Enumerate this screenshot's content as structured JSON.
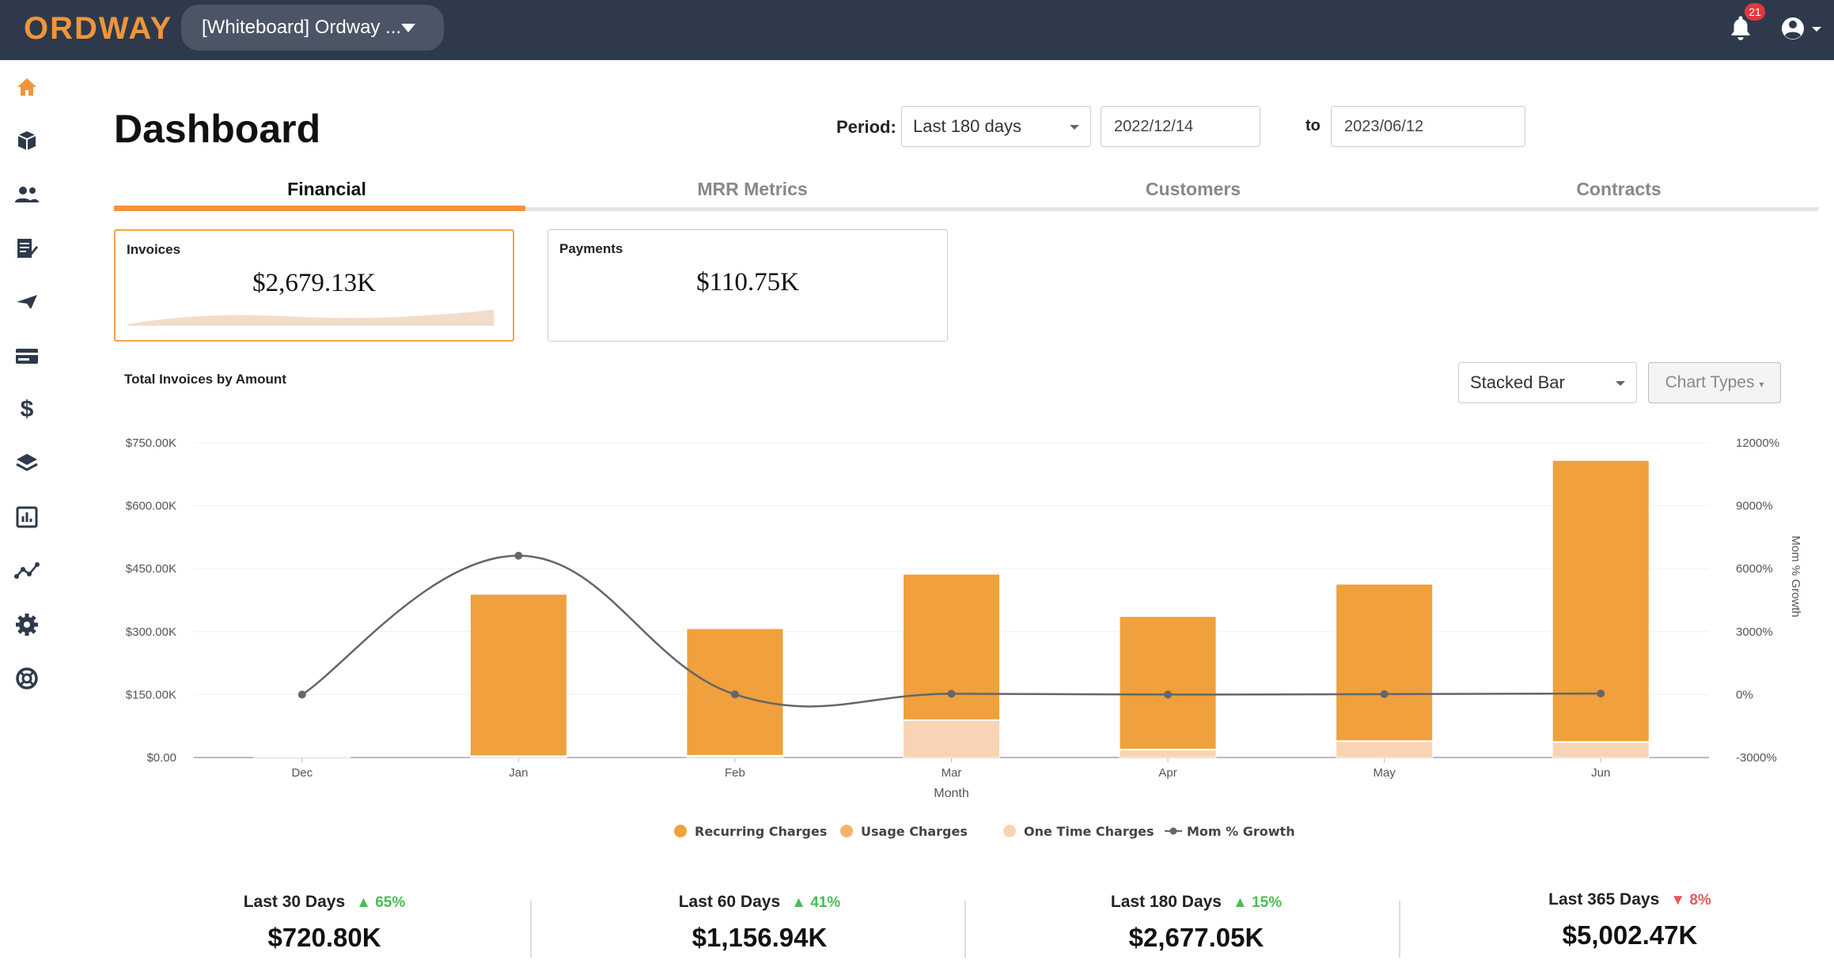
{
  "app": {
    "logo": "ORDWAY",
    "org_selector": "[Whiteboard] Ordway ...",
    "notifications_count": "21"
  },
  "sidebar": {
    "items": [
      "home-icon",
      "box-icon",
      "users-icon",
      "invoice-edit-icon",
      "send-icon",
      "card-icon",
      "dollar-icon",
      "layers-icon",
      "report-icon",
      "analytics-icon",
      "settings-icon",
      "support-icon"
    ]
  },
  "page": {
    "title": "Dashboard",
    "period_label": "Period:",
    "period_value": "Last 180 days",
    "date_from": "2022/12/14",
    "to_label": "to",
    "date_to": "2023/06/12"
  },
  "tabs": [
    {
      "label": "Financial",
      "active": true
    },
    {
      "label": "MRR Metrics",
      "active": false
    },
    {
      "label": "Customers",
      "active": false
    },
    {
      "label": "Contracts",
      "active": false
    }
  ],
  "cards": [
    {
      "title": "Invoices",
      "value": "$2,679.13K"
    },
    {
      "title": "Payments",
      "value": "$110.75K"
    }
  ],
  "chart_section": {
    "title": "Total Invoices by Amount",
    "chart_type_select": "Stacked Bar",
    "chart_types_button": "Chart Types"
  },
  "chart_data": {
    "type": "bar",
    "stacked": true,
    "title": "Total Invoices by Amount",
    "xlabel": "Month",
    "ylabel": "",
    "y2label": "Mom % Growth",
    "categories": [
      "Dec",
      "Jan",
      "Feb",
      "Mar",
      "Apr",
      "May",
      "Jun"
    ],
    "ylim": [
      0,
      750
    ],
    "y_ticks": [
      "$0.00",
      "$150.00K",
      "$300.00K",
      "$450.00K",
      "$600.00K",
      "$750.00K"
    ],
    "y2lim": [
      -3000,
      12000
    ],
    "y2_ticks": [
      "-3000%",
      "0%",
      "3000%",
      "6000%",
      "9000%",
      "12000%"
    ],
    "series": [
      {
        "name": "Recurring Charges",
        "color": "#f0a03c",
        "values": [
          0,
          385,
          302,
          347,
          316,
          373,
          670
        ],
        "unit": "K$"
      },
      {
        "name": "Usage Charges",
        "color": "#f5b36a",
        "values": [
          0,
          2,
          2,
          2,
          2,
          2,
          2
        ],
        "unit": "K$"
      },
      {
        "name": "One Time Charges",
        "color": "#f8d4b4",
        "values": [
          1,
          2,
          3,
          88,
          18,
          38,
          36
        ],
        "unit": "K$"
      }
    ],
    "line_series": {
      "name": "Mom % Growth",
      "color": "#666666",
      "values": [
        0,
        6620,
        10,
        40,
        0,
        20,
        50
      ],
      "unit": "%"
    },
    "grid": true,
    "legend": "bottom"
  },
  "kpis": [
    {
      "label": "Last 30 Days",
      "pct": "65%",
      "direction": "up",
      "value": "$720.80K"
    },
    {
      "label": "Last 60 Days",
      "pct": "41%",
      "direction": "up",
      "value": "$1,156.94K"
    },
    {
      "label": "Last 180 Days",
      "pct": "15%",
      "direction": "up",
      "value": "$2,677.05K"
    },
    {
      "label": "Last 365 Days",
      "pct": "8%",
      "direction": "down",
      "value": "$5,002.47K"
    }
  ],
  "colors": {
    "accent": "#f0953a",
    "topbar": "#2e3a4b",
    "up": "#4cbb55",
    "down": "#e05c5c"
  }
}
